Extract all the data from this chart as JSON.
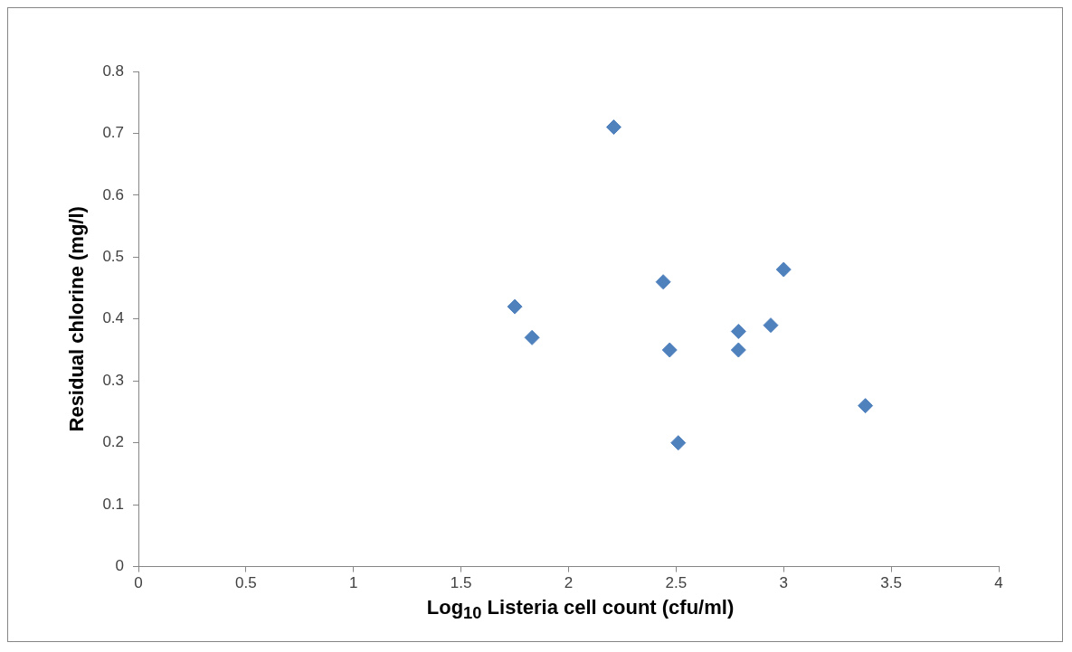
{
  "chart_data": {
    "type": "scatter",
    "xlabel": "Log$_{10}$ Listeria cell count (cfu/ml)",
    "ylabel": "Residual chlorine (mg/l)",
    "series": [
      {
        "color": "#4f81bd",
        "x": [
          2.21,
          1.75,
          1.83,
          2.44,
          2.47,
          2.51,
          2.79,
          2.79,
          2.94,
          3.0,
          3.38
        ],
        "values": [
          0.71,
          0.42,
          0.37,
          0.46,
          0.35,
          0.2,
          0.38,
          0.35,
          0.39,
          0.48,
          0.26
        ]
      }
    ],
    "xlim": [
      0,
      4
    ],
    "xticks": [
      0,
      0.5,
      1,
      1.5,
      2,
      2.5,
      3,
      3.5,
      4
    ],
    "ylim": [
      0,
      0.8
    ],
    "yticks": [
      0,
      0.1,
      0.2,
      0.3,
      0.4,
      0.5,
      0.6,
      0.7,
      0.8
    ],
    "grid": false,
    "legend": false,
    "marker": "diamond"
  }
}
